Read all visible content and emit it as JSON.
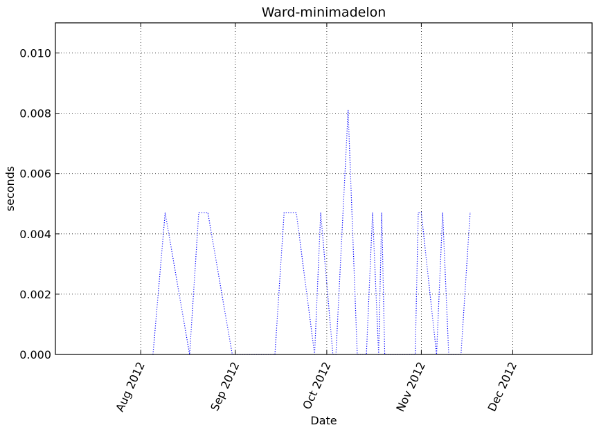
{
  "chart_data": {
    "type": "line",
    "title": "Ward-minimadelon",
    "xlabel": "Date",
    "ylabel": "seconds",
    "xlim": [
      "2012-07-04",
      "2012-12-27"
    ],
    "ylim": [
      0,
      0.011
    ],
    "grid": true,
    "x_ticks": [
      {
        "date": "2012-08-01",
        "label": "Aug 2012"
      },
      {
        "date": "2012-09-01",
        "label": "Sep 2012"
      },
      {
        "date": "2012-10-01",
        "label": "Oct 2012"
      },
      {
        "date": "2012-11-01",
        "label": "Nov 2012"
      },
      {
        "date": "2012-12-01",
        "label": "Dec 2012"
      }
    ],
    "y_ticks": [
      "0.000",
      "0.002",
      "0.004",
      "0.006",
      "0.008",
      "0.010"
    ],
    "series": [
      {
        "color": "#0000ff",
        "line_style": "dotted",
        "x": [
          "2012-08-05",
          "2012-08-09",
          "2012-08-17",
          "2012-08-20",
          "2012-08-23",
          "2012-08-31",
          "2012-09-14",
          "2012-09-17",
          "2012-09-21",
          "2012-09-27",
          "2012-09-29",
          "2012-10-03",
          "2012-10-04",
          "2012-10-08",
          "2012-10-11",
          "2012-10-14",
          "2012-10-16",
          "2012-10-18",
          "2012-10-19",
          "2012-10-20",
          "2012-10-30",
          "2012-10-31",
          "2012-11-01",
          "2012-11-06",
          "2012-11-08",
          "2012-11-10",
          "2012-11-14",
          "2012-11-17"
        ],
        "y": [
          0,
          0.0047,
          0,
          0.0047,
          0.0047,
          0,
          0,
          0.0047,
          0.0047,
          0,
          0.0047,
          0,
          0,
          0.0081,
          0,
          0,
          0.0047,
          0,
          0.0047,
          0,
          0,
          0.0047,
          0.0047,
          0,
          0.0047,
          0,
          0,
          0.0047
        ]
      }
    ]
  }
}
